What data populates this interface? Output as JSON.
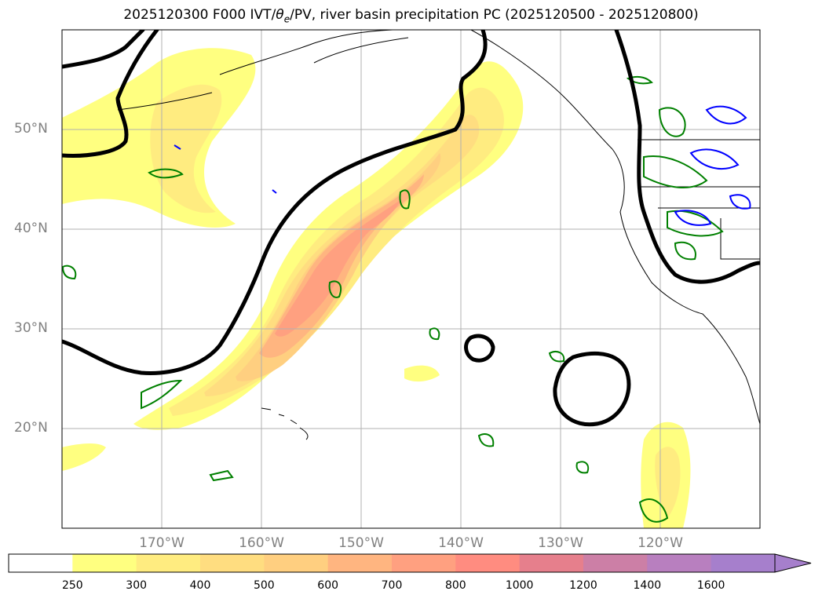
{
  "title": {
    "prefix": "2025120300 F000 IVT/",
    "theta": "θ",
    "theta_sub": "e",
    "suffix": "/PV, river basin precipitation PC (2025120500 - 2025120800)"
  },
  "map": {
    "projection": "mercator",
    "extent": {
      "lon_min": -180,
      "lon_max": -110,
      "lat_min": 10,
      "lat_max": 60
    },
    "gridlines": true,
    "lat_ticks": [
      {
        "value": 50,
        "label": "50°N"
      },
      {
        "value": 40,
        "label": "40°N"
      },
      {
        "value": 30,
        "label": "30°N"
      },
      {
        "value": 20,
        "label": "20°N"
      }
    ],
    "lon_ticks": [
      {
        "value": -170,
        "label": "170°W"
      },
      {
        "value": -160,
        "label": "160°W"
      },
      {
        "value": -150,
        "label": "150°W"
      },
      {
        "value": -140,
        "label": "140°W"
      },
      {
        "value": -130,
        "label": "130°W"
      },
      {
        "value": -120,
        "label": "120°W"
      }
    ],
    "colors": {
      "theta_e_contour": "#000000",
      "pv_contour_green": "#008000",
      "pv_contour_blue": "#0000ff",
      "coastline": "#000000",
      "gridline": "#b0b0b0"
    }
  },
  "colorbar": {
    "levels": [
      "250",
      "300",
      "400",
      "500",
      "600",
      "700",
      "800",
      "1000",
      "1200",
      "1400",
      "1600"
    ],
    "colors": [
      "#ffffff",
      "#ffff80",
      "#ffec80",
      "#ffdd80",
      "#ffcf80",
      "#ffb580",
      "#ffa080",
      "#ff8c80",
      "#e67f8c",
      "#cc7fa6",
      "#b87fbf",
      "#a67fcc"
    ],
    "extend": "max"
  }
}
